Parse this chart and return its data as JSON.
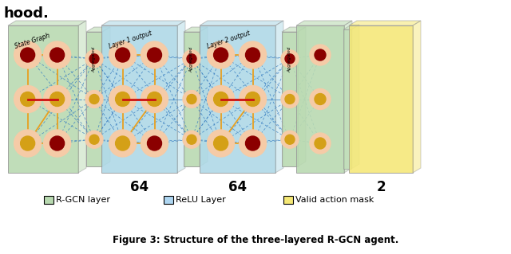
{
  "title": "Figure 3: Structure of the three-layered R-GCN agent.",
  "header_text": "hood.",
  "legend_items": [
    {
      "label": "R-GCN layer",
      "color": "#b8d9b0"
    },
    {
      "label": "ReLU Layer",
      "color": "#aed6f1"
    },
    {
      "label": "Valid action mask",
      "color": "#f5e876"
    }
  ],
  "layer_labels": [
    "64",
    "64",
    "2"
  ],
  "bg_color": "#ffffff",
  "gcn_color": "#b8d9b0",
  "relu_color": "#add8e6",
  "mask_color": "#f5e876",
  "agg_color": "#b8d9b0",
  "node_outer_color": "#f5cba7",
  "node_dark_color": "#8b0000",
  "node_yellow_color": "#d4a017",
  "edge_orange": "#e8a020",
  "edge_blue": "#3a7fc1",
  "edge_red": "#cc1111",
  "panel_border": "#999999"
}
